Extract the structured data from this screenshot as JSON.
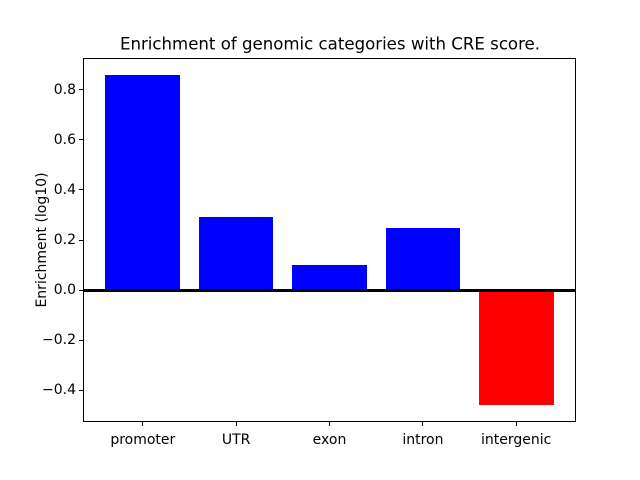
{
  "chart_data": {
    "type": "bar",
    "title": "Enrichment of genomic categories with CRE score.",
    "ylabel": "Enrichment (log10)",
    "xlabel": "",
    "categories": [
      "promoter",
      "UTR",
      "exon",
      "intron",
      "intergenic"
    ],
    "values": [
      0.86,
      0.29,
      0.1,
      0.25,
      -0.46
    ],
    "bar_colors": [
      "#0000ff",
      "#0000ff",
      "#0000ff",
      "#0000ff",
      "#ff0000"
    ],
    "positive_color": "#0000ff",
    "negative_color": "#ff0000",
    "yticks": [
      0.8,
      0.6,
      0.4,
      0.2,
      0.0,
      -0.2,
      -0.4
    ],
    "ylim": [
      -0.526,
      0.926
    ],
    "bar_width_fraction": 0.8,
    "grid": false,
    "zero_line": true,
    "legend": null,
    "background_color": "#ffffff"
  }
}
